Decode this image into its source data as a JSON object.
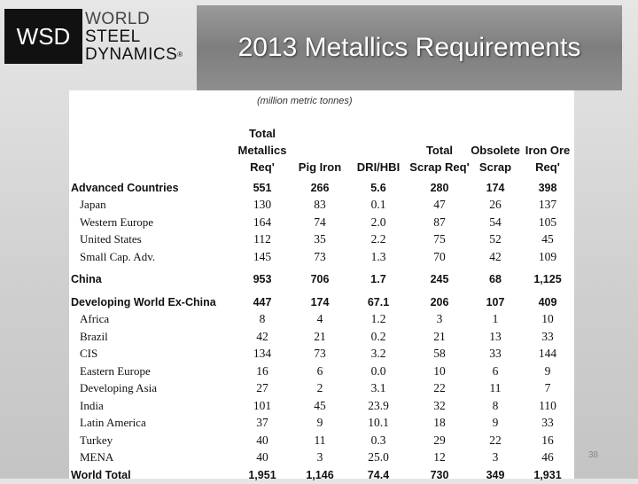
{
  "header": {
    "logo_abbr": "WSD",
    "logo_lines": [
      "WORLD",
      "STEEL",
      "DYNAMICS"
    ],
    "logo_mark": "®",
    "title": "2013 Metallics Requirements"
  },
  "table": {
    "caption": "(million metric tonnes)",
    "columns": [
      "Total Metallics Req'",
      "Pig Iron",
      "DRI/HBI",
      "Total Scrap Req'",
      "Obsolete Scrap",
      "Iron Ore Req'"
    ],
    "groups": [
      {
        "name": "Advanced Countries",
        "values": [
          "551",
          "266",
          "5.6",
          "280",
          "174",
          "398"
        ],
        "rows": [
          {
            "name": "Japan",
            "values": [
              "130",
              "83",
              "0.1",
              "47",
              "26",
              "137"
            ]
          },
          {
            "name": "Western Europe",
            "values": [
              "164",
              "74",
              "2.0",
              "87",
              "54",
              "105"
            ]
          },
          {
            "name": "United States",
            "values": [
              "112",
              "35",
              "2.2",
              "75",
              "52",
              "45"
            ]
          },
          {
            "name": "Small Cap. Adv.",
            "values": [
              "145",
              "73",
              "1.3",
              "70",
              "42",
              "109"
            ]
          }
        ]
      },
      {
        "name": "China",
        "values": [
          "953",
          "706",
          "1.7",
          "245",
          "68",
          "1,125"
        ],
        "rows": []
      },
      {
        "name": "Developing World Ex-China",
        "values": [
          "447",
          "174",
          "67.1",
          "206",
          "107",
          "409"
        ],
        "rows": [
          {
            "name": "Africa",
            "values": [
              "8",
              "4",
              "1.2",
              "3",
              "1",
              "10"
            ]
          },
          {
            "name": "Brazil",
            "values": [
              "42",
              "21",
              "0.2",
              "21",
              "13",
              "33"
            ]
          },
          {
            "name": "CIS",
            "values": [
              "134",
              "73",
              "3.2",
              "58",
              "33",
              "144"
            ]
          },
          {
            "name": "Eastern Europe",
            "values": [
              "16",
              "6",
              "0.0",
              "10",
              "6",
              "9"
            ]
          },
          {
            "name": "Developing Asia",
            "values": [
              "27",
              "2",
              "3.1",
              "22",
              "11",
              "7"
            ]
          },
          {
            "name": "India",
            "values": [
              "101",
              "45",
              "23.9",
              "32",
              "8",
              "110"
            ]
          },
          {
            "name": "Latin America",
            "values": [
              "37",
              "9",
              "10.1",
              "18",
              "9",
              "33"
            ]
          },
          {
            "name": "Turkey",
            "values": [
              "40",
              "11",
              "0.3",
              "29",
              "22",
              "16"
            ]
          },
          {
            "name": "MENA",
            "values": [
              "40",
              "3",
              "25.0",
              "12",
              "3",
              "46"
            ]
          }
        ]
      }
    ],
    "total": {
      "name": "World Total",
      "values": [
        "1,951",
        "1,146",
        "74.4",
        "730",
        "349",
        "1,931"
      ]
    }
  },
  "footer": {
    "page_number": "38"
  }
}
